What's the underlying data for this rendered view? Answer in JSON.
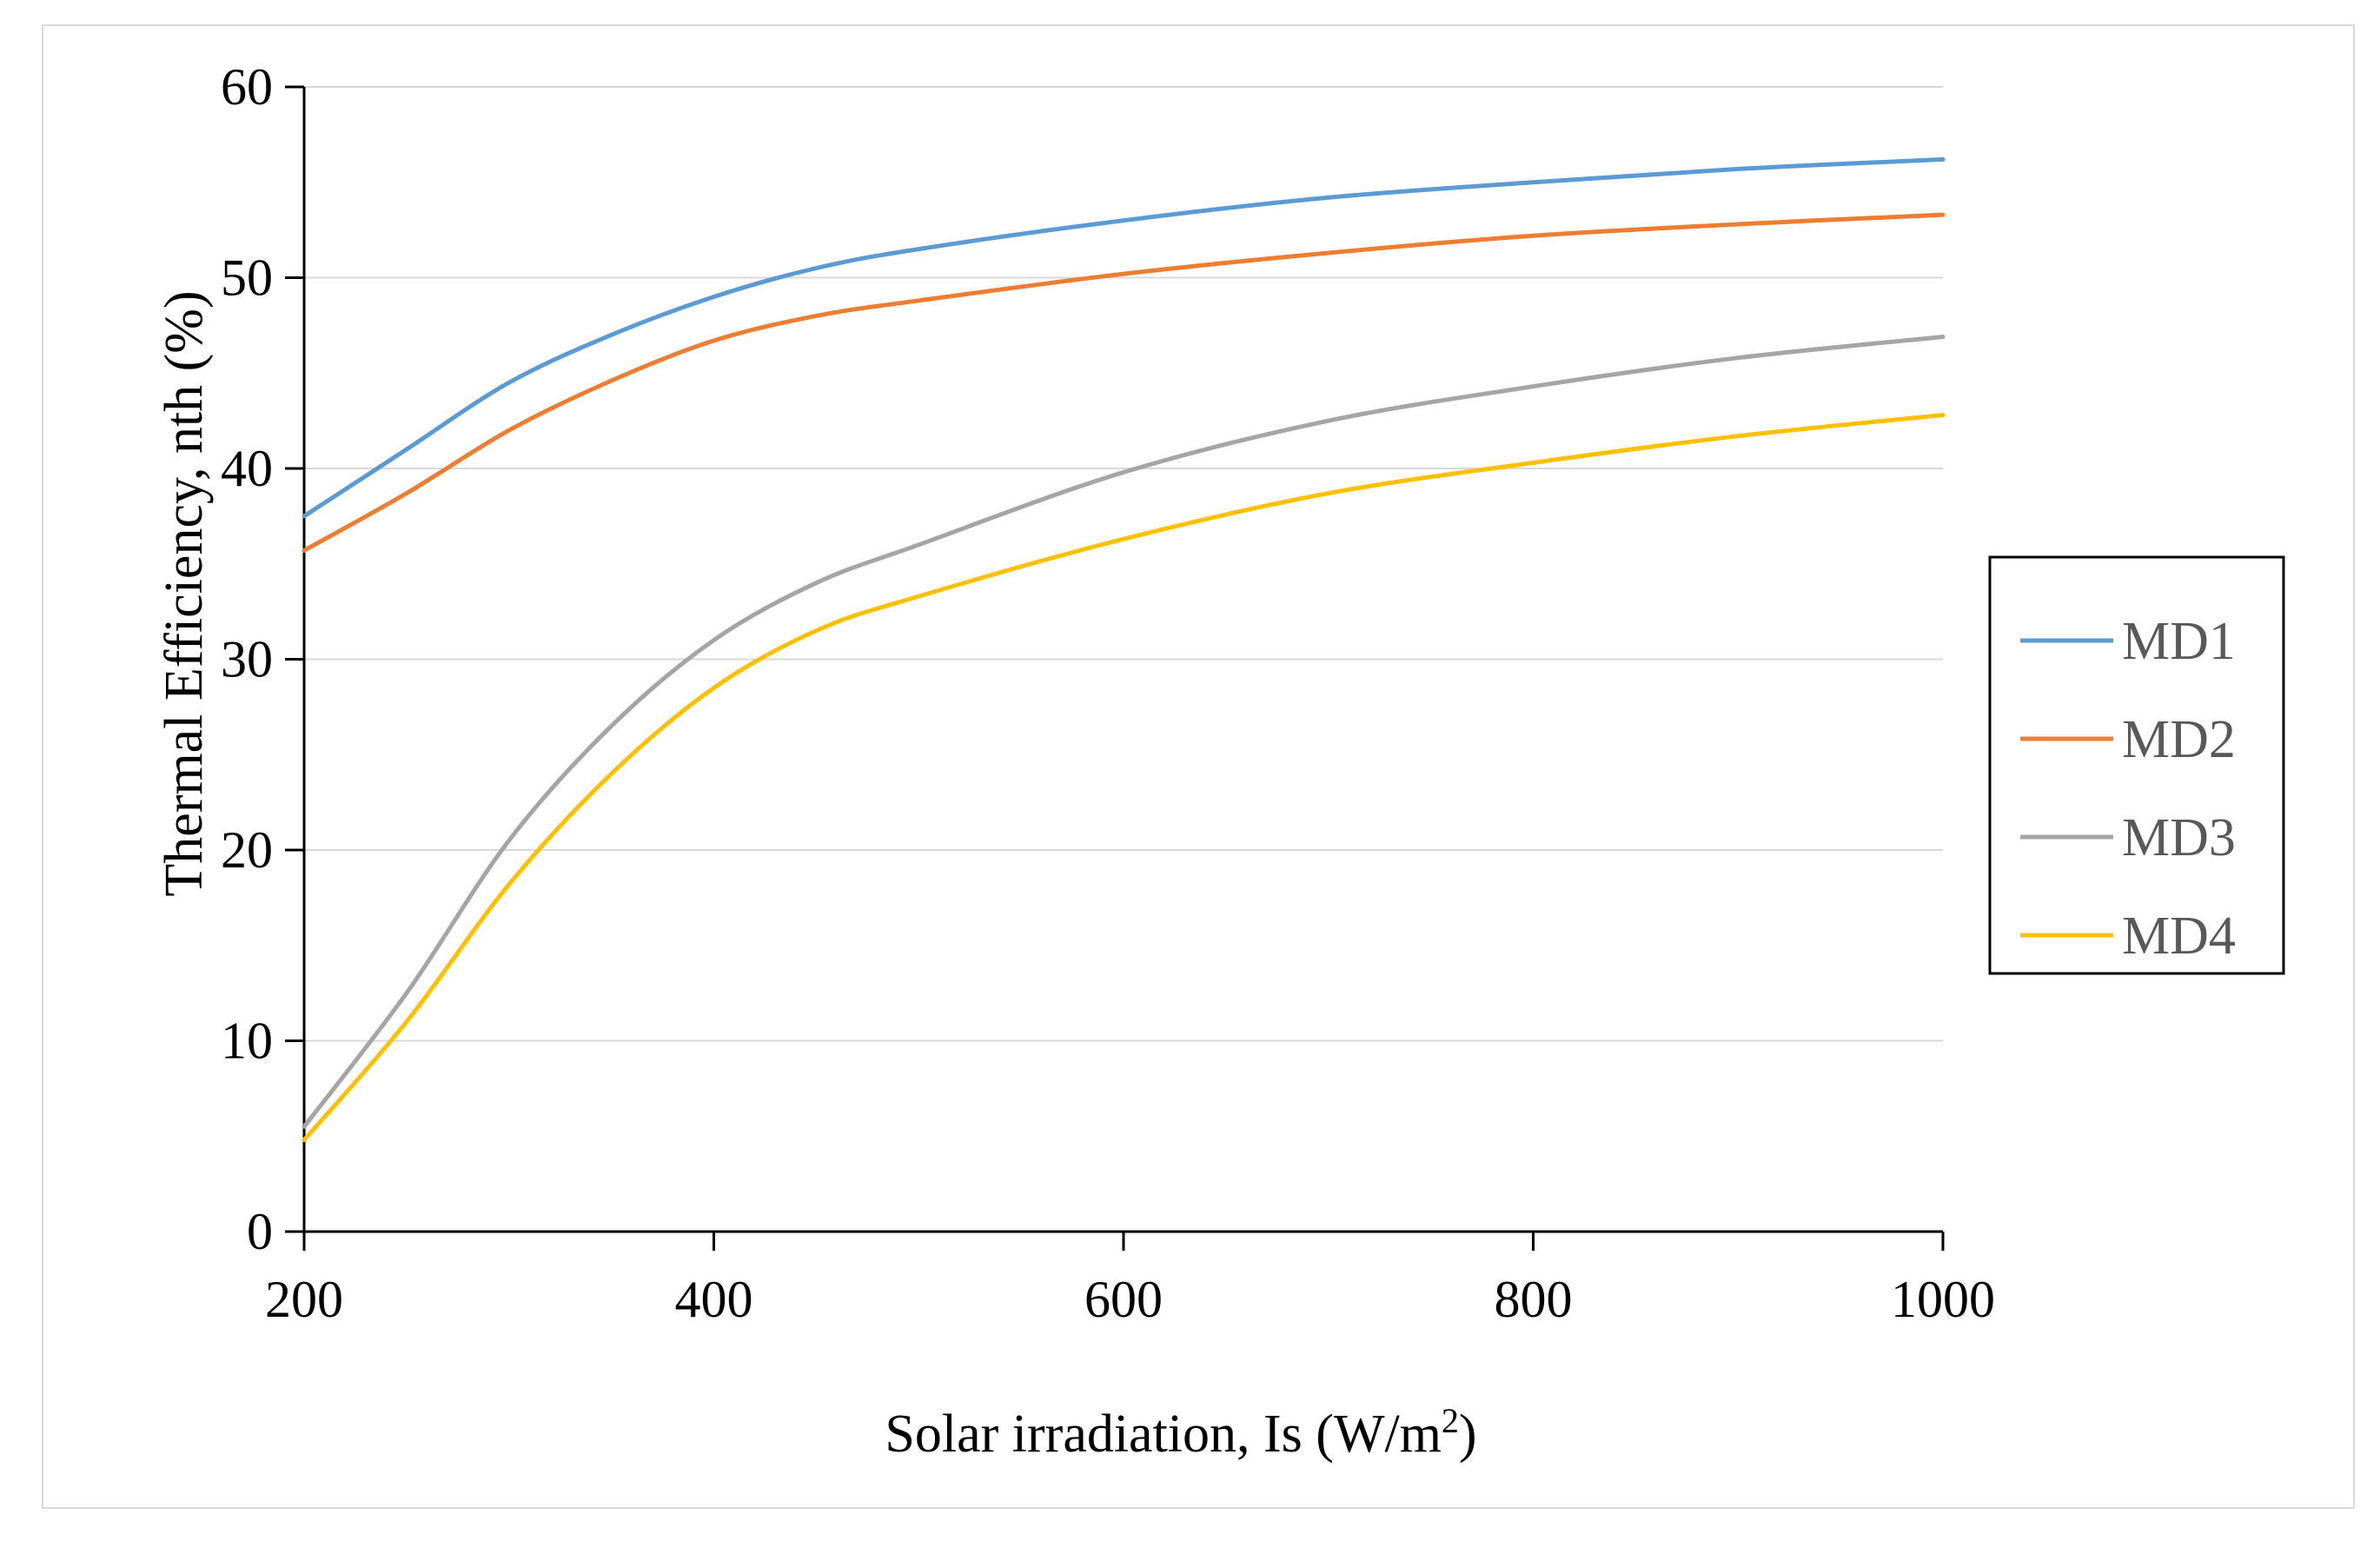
{
  "chart_data": {
    "type": "line",
    "xlabel": "Solar irradiation, Is (W/m",
    "xlabel_sup": "2",
    "xlabel_end": ")",
    "ylabel": "Thermal Efficiency, nth (%)",
    "xlim": [
      200,
      1000
    ],
    "ylim": [
      0,
      60
    ],
    "x_ticks": [
      "200",
      "400",
      "600",
      "800",
      "1000"
    ],
    "y_ticks": [
      "0",
      "10",
      "20",
      "30",
      "40",
      "50",
      "60"
    ],
    "legend_position": "right",
    "series": [
      {
        "name": "MD1",
        "color": "#5b9bd5",
        "x": [
          200,
          250,
          300,
          350,
          400,
          450,
          500,
          600,
          700,
          800,
          900,
          1000
        ],
        "y": [
          37.5,
          41.0,
          44.5,
          47.0,
          49.0,
          50.5,
          51.5,
          53.0,
          54.2,
          55.0,
          55.7,
          56.2
        ]
      },
      {
        "name": "MD2",
        "color": "#ed7d31",
        "x": [
          200,
          250,
          300,
          350,
          400,
          450,
          500,
          600,
          700,
          800,
          900,
          1000
        ],
        "y": [
          35.7,
          38.7,
          42.0,
          44.6,
          46.7,
          48.0,
          48.8,
          50.2,
          51.3,
          52.2,
          52.8,
          53.3
        ]
      },
      {
        "name": "MD3",
        "color": "#a5a5a5",
        "x": [
          200,
          250,
          300,
          350,
          400,
          450,
          500,
          600,
          700,
          800,
          900,
          1000
        ],
        "y": [
          5.5,
          12.5,
          20.5,
          26.5,
          31.0,
          34.0,
          36.0,
          39.8,
          42.5,
          44.3,
          45.8,
          46.9
        ]
      },
      {
        "name": "MD4",
        "color": "#ffc000",
        "x": [
          200,
          250,
          300,
          350,
          400,
          450,
          500,
          600,
          700,
          800,
          900,
          1000
        ],
        "y": [
          4.8,
          11.0,
          18.2,
          24.0,
          28.5,
          31.5,
          33.3,
          36.3,
          38.7,
          40.3,
          41.7,
          42.8
        ]
      }
    ]
  }
}
